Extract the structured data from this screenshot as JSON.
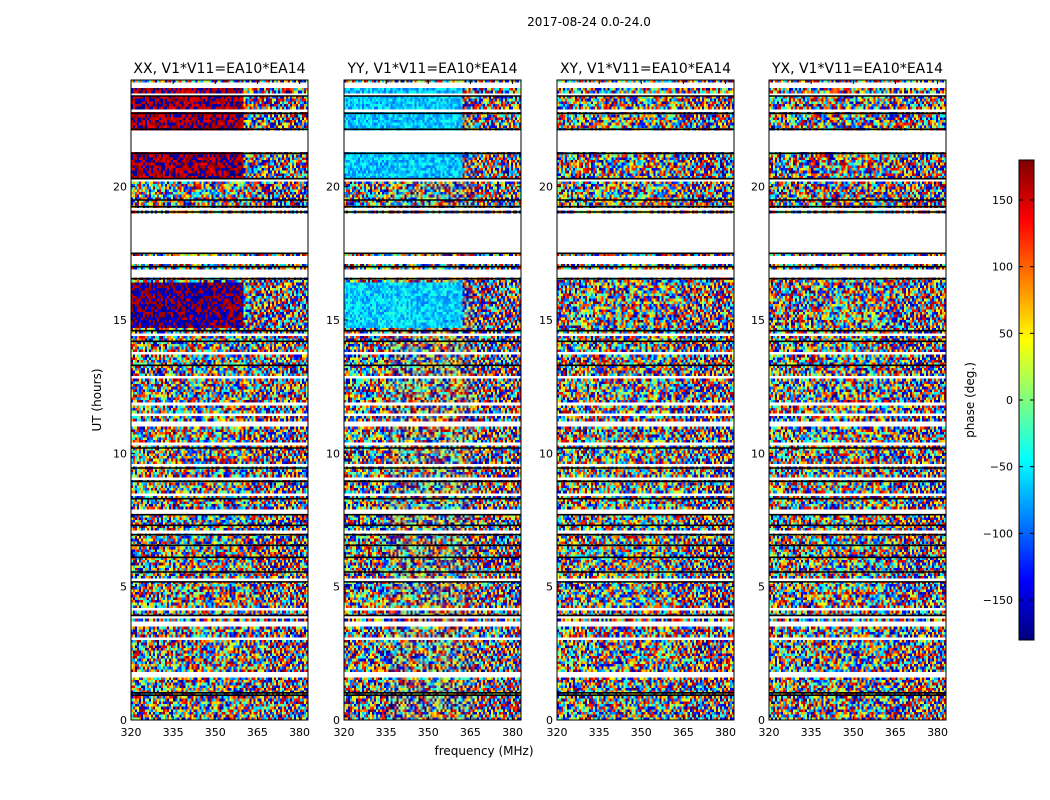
{
  "figure": {
    "suptitle": "2017-08-24 0.0-24.0",
    "colorbar_label": "phase (deg.)",
    "colorbar_ticks": [
      150,
      100,
      50,
      0,
      -50,
      -100,
      -150
    ],
    "colorbar_tick_labels": [
      "150",
      "100",
      "50",
      "0",
      "−50",
      "−100",
      "−150"
    ],
    "colorbar_range": [
      -180,
      180
    ],
    "colormap": [
      "#00007f",
      "#0000ff",
      "#007fff",
      "#00ffff",
      "#7fff7f",
      "#ffff00",
      "#ff7f00",
      "#ff0000",
      "#7f0000"
    ]
  },
  "chart_data": [
    {
      "type": "heatmap",
      "title": "XX, V1*V11=EA10*EA14",
      "xlabel": "",
      "ylabel": "UT (hours)",
      "x_ticks": [
        "320",
        "335",
        "350",
        "365",
        "380"
      ],
      "x_tick_values": [
        320,
        335,
        350,
        365,
        380
      ],
      "y_ticks": [
        "0",
        "5",
        "10",
        "15",
        "20"
      ],
      "y_tick_values": [
        0,
        5,
        10,
        15,
        20
      ],
      "xlim": [
        320,
        383
      ],
      "ylim": [
        0,
        24
      ],
      "bias_bands": [
        [
          14.7,
          16.4,
          -175
        ],
        [
          20.2,
          23.8,
          170
        ]
      ],
      "bias_split_mhz": 360
    },
    {
      "type": "heatmap",
      "title": "YY, V1*V11=EA10*EA14",
      "xlabel": "frequency (MHz)",
      "ylabel": "",
      "x_ticks": [
        "320",
        "335",
        "350",
        "365",
        "380"
      ],
      "x_tick_values": [
        320,
        335,
        350,
        365,
        380
      ],
      "y_ticks": [
        "0",
        "5",
        "10",
        "15",
        "20"
      ],
      "y_tick_values": [
        0,
        5,
        10,
        15,
        20
      ],
      "xlim": [
        320,
        383
      ],
      "ylim": [
        0,
        24
      ],
      "bias_bands": [
        [
          14.7,
          16.4,
          -60
        ],
        [
          20.2,
          23.8,
          -65
        ]
      ],
      "bias_split_mhz": 362
    },
    {
      "type": "heatmap",
      "title": "XY, V1*V11=EA10*EA14",
      "xlabel": "",
      "ylabel": "",
      "x_ticks": [
        "320",
        "335",
        "350",
        "365",
        "380"
      ],
      "x_tick_values": [
        320,
        335,
        350,
        365,
        380
      ],
      "y_ticks": [
        "0",
        "5",
        "10",
        "15",
        "20"
      ],
      "y_tick_values": [
        0,
        5,
        10,
        15,
        20
      ],
      "xlim": [
        320,
        383
      ],
      "ylim": [
        0,
        24
      ],
      "bias_bands": [],
      "bias_split_mhz": 360
    },
    {
      "type": "heatmap",
      "title": "YX, V1*V11=EA10*EA14",
      "xlabel": "",
      "ylabel": "",
      "x_ticks": [
        "320",
        "335",
        "350",
        "365",
        "380"
      ],
      "x_tick_values": [
        320,
        335,
        350,
        365,
        380
      ],
      "y_ticks": [
        "0",
        "5",
        "10",
        "15",
        "20"
      ],
      "y_tick_values": [
        0,
        5,
        10,
        15,
        20
      ],
      "xlim": [
        320,
        383
      ],
      "ylim": [
        0,
        24
      ],
      "bias_bands": [],
      "bias_split_mhz": 360
    }
  ],
  "data_gaps_hours": [
    [
      0.95,
      1.0
    ],
    [
      1.6,
      1.75
    ],
    [
      3.0,
      3.1
    ],
    [
      3.55,
      3.65
    ],
    [
      3.85,
      3.9
    ],
    [
      4.1,
      4.2
    ],
    [
      4.65,
      4.7
    ],
    [
      5.2,
      5.3
    ],
    [
      7.0,
      7.05
    ],
    [
      7.75,
      7.85
    ],
    [
      8.45,
      8.5
    ],
    [
      9.05,
      9.1
    ],
    [
      9.55,
      9.6
    ],
    [
      10.3,
      10.4
    ],
    [
      11.05,
      11.15
    ],
    [
      11.45,
      11.5
    ],
    [
      11.8,
      11.9
    ],
    [
      12.85,
      12.95
    ],
    [
      13.7,
      13.75
    ],
    [
      14.45,
      14.5
    ],
    [
      16.6,
      16.9
    ],
    [
      17.05,
      17.35
    ],
    [
      17.55,
      19.0
    ],
    [
      19.15,
      19.2
    ],
    [
      20.25,
      20.3
    ],
    [
      21.3,
      22.1
    ],
    [
      22.8,
      22.9
    ],
    [
      23.45,
      23.5
    ],
    [
      23.7,
      23.85
    ]
  ],
  "dark_rows_hours": [
    0.93,
    1.02,
    3.92,
    5.18,
    5.55,
    6.1,
    6.55,
    6.95,
    7.3,
    7.7,
    8.3,
    8.95,
    9.45,
    10.2,
    13.3,
    14.2,
    14.6,
    16.55,
    17.0,
    17.5,
    19.05,
    19.25,
    19.5,
    20.3,
    21.25,
    22.15,
    22.75,
    23.4
  ]
}
